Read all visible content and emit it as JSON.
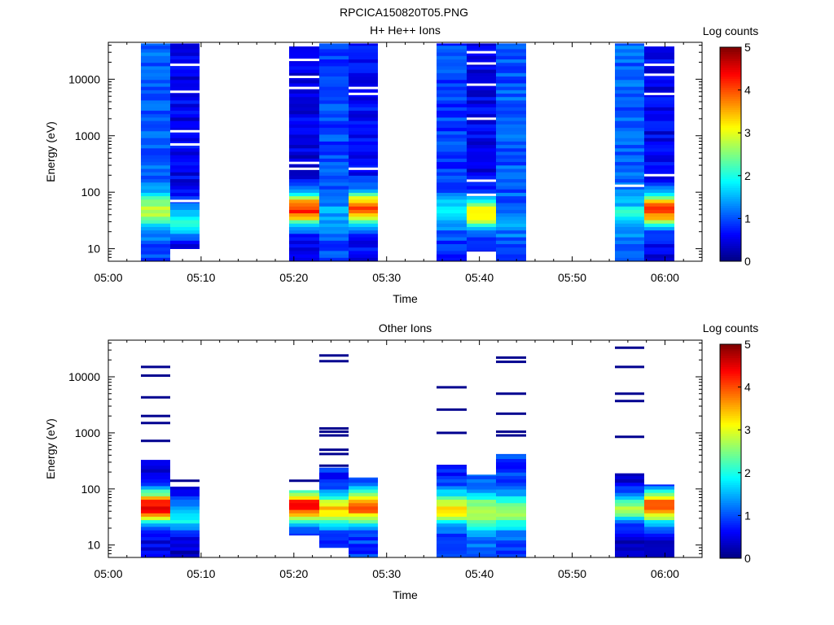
{
  "page": {
    "figure_title": "RPCICA150820T05.PNG"
  },
  "chart_data": [
    {
      "type": "heatmap",
      "title": "H+ He++ Ions",
      "xlabel": "Time",
      "ylabel": "Energy (eV)",
      "colorbar_label": "Log counts",
      "x_ticks": [
        "05:00",
        "05:10",
        "05:20",
        "05:30",
        "05:40",
        "05:50",
        "06:00"
      ],
      "x_range_minutes": [
        0,
        64
      ],
      "y_scale": "log",
      "y_range_ev": [
        6,
        45000
      ],
      "y_ticks": [
        "10",
        "100",
        "1000",
        "10000"
      ],
      "colorbar_ticks": [
        "0",
        "1",
        "2",
        "3",
        "4",
        "5"
      ],
      "colorbar_range": [
        0,
        5
      ],
      "scans": [
        {
          "start_min": 3.5,
          "end_min": 6.7,
          "e_min": 6,
          "e_max": 43000,
          "base_level": 1.05,
          "peak_ev": 48,
          "peak_level": 2.9,
          "white_lines_ev": []
        },
        {
          "start_min": 6.7,
          "end_min": 9.8,
          "e_min": 10,
          "e_max": 43000,
          "base_level": 0.55,
          "peak_ev": 32,
          "peak_level": 2.0,
          "white_lines_ev": [
            18000,
            6000,
            1200,
            700,
            70
          ]
        },
        {
          "start_min": 19.5,
          "end_min": 22.7,
          "e_min": 6,
          "e_max": 38000,
          "base_level": 0.5,
          "peak_ev": 50,
          "peak_level": 4.2,
          "white_lines_ev": [
            22000,
            11000,
            7000,
            330,
            260
          ]
        },
        {
          "start_min": 22.7,
          "end_min": 25.9,
          "e_min": 6,
          "e_max": 43000,
          "base_level": 0.95,
          "peak_ev": 40,
          "peak_level": 1.5,
          "white_lines_ev": []
        },
        {
          "start_min": 25.9,
          "end_min": 29.1,
          "e_min": 6,
          "e_max": 43000,
          "base_level": 0.65,
          "peak_ev": 52,
          "peak_level": 3.9,
          "white_lines_ev": [
            7000,
            5500,
            260
          ]
        },
        {
          "start_min": 35.4,
          "end_min": 38.6,
          "e_min": 6,
          "e_max": 43000,
          "base_level": 0.9,
          "peak_ev": 45,
          "peak_level": 2.0,
          "white_lines_ev": []
        },
        {
          "start_min": 38.6,
          "end_min": 41.8,
          "e_min": 9,
          "e_max": 43000,
          "base_level": 0.55,
          "peak_ev": 42,
          "peak_level": 3.2,
          "white_lines_ev": [
            30000,
            19000,
            8000,
            2000,
            160,
            90
          ]
        },
        {
          "start_min": 41.8,
          "end_min": 45.0,
          "e_min": 6,
          "e_max": 43000,
          "base_level": 1.05,
          "peak_ev": 30,
          "peak_level": 1.4,
          "white_lines_ev": []
        },
        {
          "start_min": 54.6,
          "end_min": 57.8,
          "e_min": 6,
          "e_max": 43000,
          "base_level": 1.1,
          "peak_ev": 40,
          "peak_level": 1.9,
          "white_lines_ev": [
            130
          ]
        },
        {
          "start_min": 57.8,
          "end_min": 61.0,
          "e_min": 6,
          "e_max": 38000,
          "base_level": 0.55,
          "peak_ev": 48,
          "peak_level": 4.1,
          "white_lines_ev": [
            18000,
            12000,
            5500,
            200
          ]
        }
      ]
    },
    {
      "type": "heatmap",
      "title": "Other Ions",
      "xlabel": "Time",
      "ylabel": "Energy (eV)",
      "colorbar_label": "Log counts",
      "x_ticks": [
        "05:00",
        "05:10",
        "05:20",
        "05:30",
        "05:40",
        "05:50",
        "06:00"
      ],
      "x_range_minutes": [
        0,
        64
      ],
      "y_scale": "log",
      "y_range_ev": [
        6,
        45000
      ],
      "y_ticks": [
        "10",
        "100",
        "1000",
        "10000"
      ],
      "colorbar_ticks": [
        "0",
        "1",
        "2",
        "3",
        "4",
        "5"
      ],
      "colorbar_range": [
        0,
        5
      ],
      "scans": [
        {
          "start_min": 3.5,
          "end_min": 6.7,
          "e_min": 6,
          "e_max": 330,
          "base_level": 0.5,
          "peak_ev": 48,
          "peak_level": 4.5,
          "sparse_lines_ev": [
            15000,
            10500,
            4300,
            2000,
            1500,
            720
          ]
        },
        {
          "start_min": 6.7,
          "end_min": 9.8,
          "e_min": 6,
          "e_max": 110,
          "base_level": 0.3,
          "peak_ev": 32,
          "peak_level": 2.0,
          "sparse_lines_ev": [
            140
          ]
        },
        {
          "start_min": 19.5,
          "end_min": 22.7,
          "e_min": 15,
          "e_max": 95,
          "base_level": 0.6,
          "peak_ev": 50,
          "peak_level": 4.3,
          "sparse_lines_ev": [
            140
          ]
        },
        {
          "start_min": 22.7,
          "end_min": 25.9,
          "e_min": 9,
          "e_max": 240,
          "base_level": 0.8,
          "peak_ev": 42,
          "peak_level": 3.4,
          "sparse_lines_ev": [
            24000,
            19000,
            1200,
            1050,
            900,
            500,
            420,
            260
          ]
        },
        {
          "start_min": 25.9,
          "end_min": 29.1,
          "e_min": 6,
          "e_max": 160,
          "base_level": 0.9,
          "peak_ev": 48,
          "peak_level": 4.0,
          "sparse_lines_ev": []
        },
        {
          "start_min": 35.4,
          "end_min": 38.6,
          "e_min": 6,
          "e_max": 270,
          "base_level": 0.8,
          "peak_ev": 44,
          "peak_level": 3.3,
          "sparse_lines_ev": [
            6500,
            2600,
            1000
          ]
        },
        {
          "start_min": 38.6,
          "end_min": 41.8,
          "e_min": 6,
          "e_max": 180,
          "base_level": 1.2,
          "peak_ev": 40,
          "peak_level": 3.0,
          "sparse_lines_ev": []
        },
        {
          "start_min": 41.8,
          "end_min": 45.0,
          "e_min": 6,
          "e_max": 420,
          "base_level": 0.9,
          "peak_ev": 38,
          "peak_level": 2.8,
          "sparse_lines_ev": [
            22000,
            18500,
            5000,
            2200,
            1050,
            900
          ]
        },
        {
          "start_min": 54.6,
          "end_min": 57.8,
          "e_min": 6,
          "e_max": 190,
          "base_level": 0.3,
          "peak_ev": 46,
          "peak_level": 2.6,
          "sparse_lines_ev": [
            33000,
            15000,
            5000,
            3700,
            850
          ]
        },
        {
          "start_min": 57.8,
          "end_min": 61.0,
          "e_min": 6,
          "e_max": 120,
          "base_level": 0.5,
          "peak_ev": 48,
          "peak_level": 4.1,
          "sparse_lines_ev": []
        }
      ]
    }
  ]
}
